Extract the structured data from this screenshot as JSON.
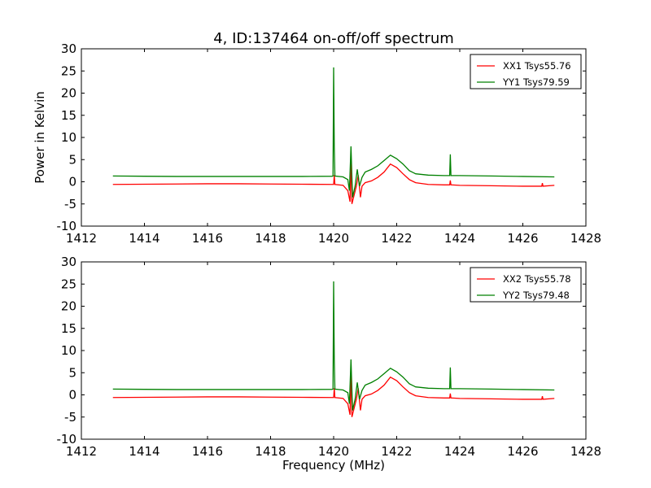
{
  "figure": {
    "title": "4, ID:137464 on-off/off spectrum",
    "xlabel": "Frequency (MHz)",
    "ylabel": "Power in Kelvin"
  },
  "chart_data": [
    {
      "type": "line",
      "title": "4, ID:137464 on-off/off spectrum",
      "xlabel": "",
      "ylabel": "Power in Kelvin",
      "xlim": [
        1412,
        1428
      ],
      "ylim": [
        -10,
        30
      ],
      "xticks": [
        "1412",
        "1414",
        "1416",
        "1418",
        "1420",
        "1422",
        "1424",
        "1426",
        "1428"
      ],
      "yticks": [
        "-10",
        "-5",
        "0",
        "5",
        "10",
        "15",
        "20",
        "25",
        "30"
      ],
      "legend_position": "top-right",
      "grid": false,
      "series": [
        {
          "name": "XX1 Tsys55.76",
          "color": "#ff0000",
          "points": [
            [
              1413.0,
              -0.6
            ],
            [
              1414.0,
              -0.55
            ],
            [
              1415.0,
              -0.5
            ],
            [
              1416.0,
              -0.45
            ],
            [
              1417.0,
              -0.45
            ],
            [
              1418.0,
              -0.5
            ],
            [
              1419.0,
              -0.55
            ],
            [
              1419.95,
              -0.6
            ],
            [
              1420.0,
              -0.6
            ],
            [
              1420.02,
              1.5
            ],
            [
              1420.04,
              -0.6
            ],
            [
              1420.3,
              -0.8
            ],
            [
              1420.45,
              -2.0
            ],
            [
              1420.52,
              -4.5
            ],
            [
              1420.55,
              6.0
            ],
            [
              1420.58,
              -5.0
            ],
            [
              1420.65,
              -3.0
            ],
            [
              1420.72,
              -1.0
            ],
            [
              1420.78,
              1.5
            ],
            [
              1420.85,
              -3.5
            ],
            [
              1420.9,
              -1.0
            ],
            [
              1421.0,
              -0.2
            ],
            [
              1421.2,
              0.2
            ],
            [
              1421.4,
              1.0
            ],
            [
              1421.6,
              2.2
            ],
            [
              1421.8,
              4.0
            ],
            [
              1422.0,
              3.2
            ],
            [
              1422.2,
              1.8
            ],
            [
              1422.4,
              0.5
            ],
            [
              1422.6,
              -0.2
            ],
            [
              1423.0,
              -0.6
            ],
            [
              1423.5,
              -0.7
            ],
            [
              1423.68,
              -0.7
            ],
            [
              1423.7,
              0.3
            ],
            [
              1423.72,
              -0.7
            ],
            [
              1424.0,
              -0.8
            ],
            [
              1425.0,
              -0.9
            ],
            [
              1426.0,
              -1.0
            ],
            [
              1426.6,
              -1.0
            ],
            [
              1426.62,
              -0.3
            ],
            [
              1426.64,
              -1.0
            ],
            [
              1427.0,
              -0.8
            ]
          ]
        },
        {
          "name": "YY1 Tsys79.59",
          "color": "#008000",
          "points": [
            [
              1413.0,
              1.3
            ],
            [
              1414.0,
              1.25
            ],
            [
              1415.0,
              1.2
            ],
            [
              1416.0,
              1.2
            ],
            [
              1417.0,
              1.2
            ],
            [
              1418.0,
              1.2
            ],
            [
              1419.0,
              1.2
            ],
            [
              1419.95,
              1.25
            ],
            [
              1419.98,
              1.3
            ],
            [
              1420.0,
              25.8
            ],
            [
              1420.02,
              8.0
            ],
            [
              1420.04,
              1.3
            ],
            [
              1420.3,
              1.1
            ],
            [
              1420.45,
              0.5
            ],
            [
              1420.5,
              -2.0
            ],
            [
              1420.55,
              8.0
            ],
            [
              1420.6,
              -3.5
            ],
            [
              1420.68,
              -1.0
            ],
            [
              1420.75,
              2.8
            ],
            [
              1420.82,
              -1.0
            ],
            [
              1420.9,
              1.0
            ],
            [
              1421.0,
              2.2
            ],
            [
              1421.2,
              2.8
            ],
            [
              1421.4,
              3.6
            ],
            [
              1421.6,
              4.8
            ],
            [
              1421.8,
              6.0
            ],
            [
              1422.0,
              5.2
            ],
            [
              1422.2,
              4.0
            ],
            [
              1422.4,
              2.5
            ],
            [
              1422.6,
              1.8
            ],
            [
              1423.0,
              1.5
            ],
            [
              1423.5,
              1.4
            ],
            [
              1423.68,
              1.4
            ],
            [
              1423.7,
              6.2
            ],
            [
              1423.72,
              1.4
            ],
            [
              1424.0,
              1.4
            ],
            [
              1425.0,
              1.3
            ],
            [
              1426.0,
              1.2
            ],
            [
              1427.0,
              1.1
            ]
          ]
        }
      ]
    },
    {
      "type": "line",
      "title": "",
      "xlabel": "Frequency (MHz)",
      "ylabel": "",
      "xlim": [
        1412,
        1428
      ],
      "ylim": [
        -10,
        30
      ],
      "xticks": [
        "1412",
        "1414",
        "1416",
        "1418",
        "1420",
        "1422",
        "1424",
        "1426",
        "1428"
      ],
      "yticks": [
        "-10",
        "-5",
        "0",
        "5",
        "10",
        "15",
        "20",
        "25",
        "30"
      ],
      "legend_position": "top-right",
      "grid": false,
      "series": [
        {
          "name": "XX2 Tsys55.78",
          "color": "#ff0000",
          "points": [
            [
              1413.0,
              -0.6
            ],
            [
              1414.0,
              -0.55
            ],
            [
              1415.0,
              -0.5
            ],
            [
              1416.0,
              -0.45
            ],
            [
              1417.0,
              -0.45
            ],
            [
              1418.0,
              -0.5
            ],
            [
              1419.0,
              -0.55
            ],
            [
              1419.95,
              -0.6
            ],
            [
              1420.0,
              -0.6
            ],
            [
              1420.02,
              1.5
            ],
            [
              1420.04,
              -0.6
            ],
            [
              1420.3,
              -0.8
            ],
            [
              1420.45,
              -2.0
            ],
            [
              1420.52,
              -4.5
            ],
            [
              1420.55,
              6.0
            ],
            [
              1420.58,
              -5.0
            ],
            [
              1420.65,
              -3.0
            ],
            [
              1420.72,
              -1.0
            ],
            [
              1420.78,
              1.5
            ],
            [
              1420.85,
              -3.5
            ],
            [
              1420.9,
              -1.0
            ],
            [
              1421.0,
              -0.2
            ],
            [
              1421.2,
              0.2
            ],
            [
              1421.4,
              1.0
            ],
            [
              1421.6,
              2.2
            ],
            [
              1421.8,
              4.0
            ],
            [
              1422.0,
              3.2
            ],
            [
              1422.2,
              1.8
            ],
            [
              1422.4,
              0.5
            ],
            [
              1422.6,
              -0.2
            ],
            [
              1423.0,
              -0.6
            ],
            [
              1423.5,
              -0.7
            ],
            [
              1423.68,
              -0.7
            ],
            [
              1423.7,
              0.3
            ],
            [
              1423.72,
              -0.7
            ],
            [
              1424.0,
              -0.8
            ],
            [
              1425.0,
              -0.9
            ],
            [
              1426.0,
              -1.0
            ],
            [
              1426.6,
              -1.0
            ],
            [
              1426.62,
              -0.3
            ],
            [
              1426.64,
              -1.0
            ],
            [
              1427.0,
              -0.8
            ]
          ]
        },
        {
          "name": "YY2 Tsys79.48",
          "color": "#008000",
          "points": [
            [
              1413.0,
              1.3
            ],
            [
              1414.0,
              1.25
            ],
            [
              1415.0,
              1.2
            ],
            [
              1416.0,
              1.2
            ],
            [
              1417.0,
              1.2
            ],
            [
              1418.0,
              1.2
            ],
            [
              1419.0,
              1.2
            ],
            [
              1419.95,
              1.25
            ],
            [
              1419.98,
              1.3
            ],
            [
              1420.0,
              25.6
            ],
            [
              1420.02,
              8.0
            ],
            [
              1420.04,
              1.3
            ],
            [
              1420.3,
              1.1
            ],
            [
              1420.45,
              0.5
            ],
            [
              1420.5,
              -2.0
            ],
            [
              1420.55,
              8.0
            ],
            [
              1420.6,
              -3.5
            ],
            [
              1420.68,
              -1.0
            ],
            [
              1420.75,
              2.8
            ],
            [
              1420.82,
              -1.0
            ],
            [
              1420.9,
              1.0
            ],
            [
              1421.0,
              2.2
            ],
            [
              1421.2,
              2.8
            ],
            [
              1421.4,
              3.6
            ],
            [
              1421.6,
              4.8
            ],
            [
              1421.8,
              6.0
            ],
            [
              1422.0,
              5.2
            ],
            [
              1422.2,
              4.0
            ],
            [
              1422.4,
              2.5
            ],
            [
              1422.6,
              1.8
            ],
            [
              1423.0,
              1.5
            ],
            [
              1423.5,
              1.4
            ],
            [
              1423.68,
              1.4
            ],
            [
              1423.7,
              6.2
            ],
            [
              1423.72,
              1.4
            ],
            [
              1424.0,
              1.4
            ],
            [
              1425.0,
              1.3
            ],
            [
              1426.0,
              1.2
            ],
            [
              1427.0,
              1.1
            ]
          ]
        }
      ]
    }
  ]
}
